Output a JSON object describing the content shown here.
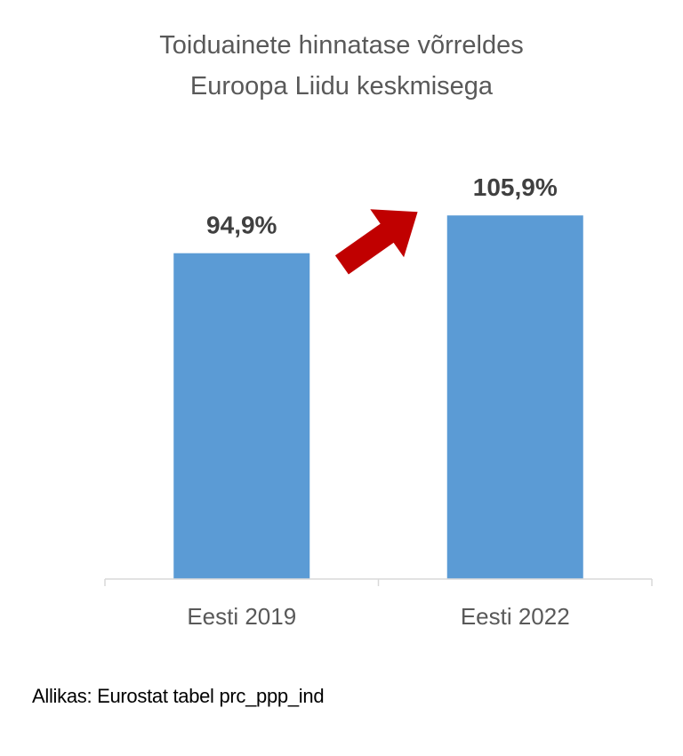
{
  "chart_data": {
    "type": "bar",
    "title_lines": [
      "Toiduainete hinnatase võrreldes",
      "Euroopa  Liidu keskmisega"
    ],
    "categories": [
      "Eesti 2019",
      "Eesti 2022"
    ],
    "values": [
      94.9,
      105.9
    ],
    "data_labels": [
      "94,9%",
      "105,9%"
    ],
    "ylim": [
      0,
      110
    ],
    "grid": false,
    "legend": "none",
    "annotation": "arrow-up-right",
    "colors": {
      "bar": "#5B9BD5",
      "arrow": "#C00000",
      "axis": "#D9D9D9"
    }
  },
  "source_note": "Allikas: Eurostat tabel prc_ppp_ind"
}
